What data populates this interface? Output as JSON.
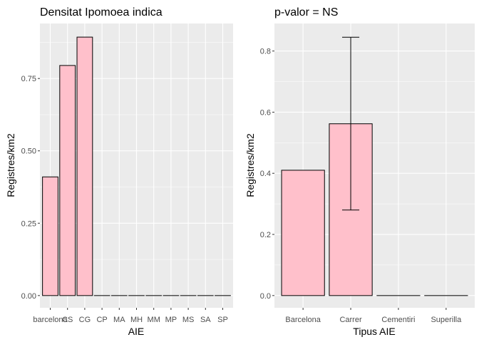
{
  "chart_data": [
    {
      "type": "bar",
      "title": "Densitat Ipomoea indica",
      "xlabel": "AIE",
      "ylabel": "Registres/km2",
      "categories": [
        "barcelona",
        "CS",
        "CG",
        "CP",
        "MA",
        "MH",
        "MM",
        "MP",
        "MS",
        "SA",
        "SP"
      ],
      "values": [
        0.41,
        0.795,
        0.893,
        0,
        0,
        0,
        0,
        0,
        0,
        0,
        0
      ],
      "yticks": [
        "0.00",
        "0.25",
        "0.50",
        "0.75"
      ],
      "ylim": [
        0,
        0.94
      ],
      "bar_fill": "#ffc0cb",
      "bar_stroke": "#000000",
      "grid": true
    },
    {
      "type": "bar",
      "title": "p-valor = NS",
      "xlabel": "Tipus AIE",
      "ylabel": "Registres/km2",
      "categories": [
        "Barcelona",
        "Carrer",
        "Cementiri",
        "Superilla"
      ],
      "values": [
        0.41,
        0.562,
        0,
        0
      ],
      "error_low": [
        null,
        0.28,
        null,
        null
      ],
      "error_high": [
        null,
        0.845,
        null,
        null
      ],
      "yticks": [
        "0.0",
        "0.2",
        "0.4",
        "0.6",
        "0.8"
      ],
      "ylim": [
        0,
        0.89
      ],
      "bar_fill": "#ffc0cb",
      "bar_stroke": "#000000",
      "grid": true
    }
  ]
}
